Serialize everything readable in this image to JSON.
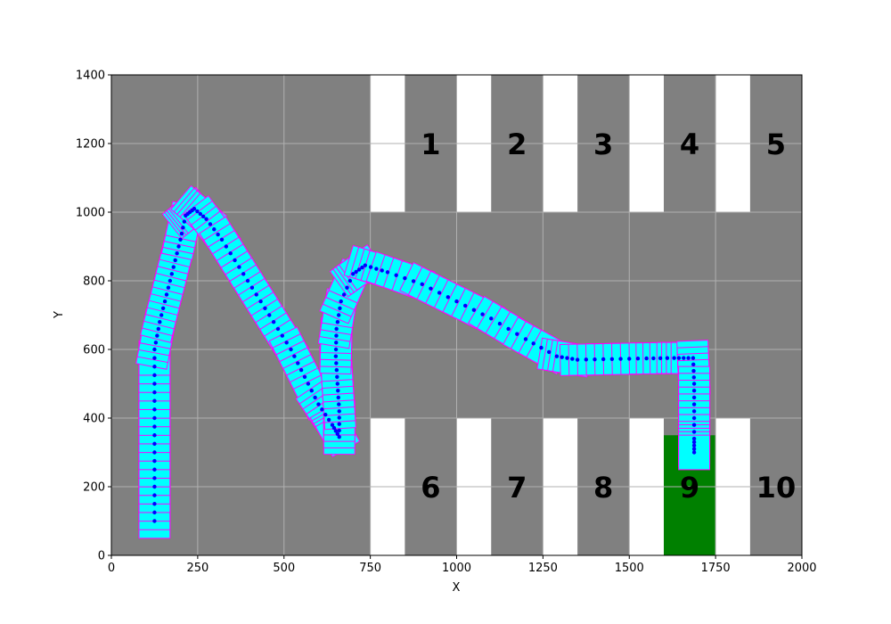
{
  "chart_data": {
    "type": "scatter",
    "title": "",
    "xlabel": "X",
    "ylabel": "Y",
    "xlim": [
      0,
      2000
    ],
    "ylim": [
      0,
      1400
    ],
    "xticks": [
      0,
      250,
      500,
      750,
      1000,
      1250,
      1500,
      1750,
      2000
    ],
    "yticks": [
      0,
      200,
      400,
      600,
      800,
      1000,
      1200,
      1400
    ],
    "grid": true,
    "colors": {
      "ground": "#808080",
      "line_marking": "#ffffff",
      "goal_slot": "#008000",
      "vehicle_fill": "#00ffff",
      "vehicle_edge": "#ff00ff",
      "path_points": "#0000ff",
      "grid": "#b0b0b0"
    },
    "white_lines": [
      [
        750,
        850,
        1000,
        1400
      ],
      [
        1000,
        1100,
        1000,
        1400
      ],
      [
        1250,
        1350,
        1000,
        1400
      ],
      [
        1500,
        1600,
        1000,
        1400
      ],
      [
        1750,
        1850,
        1000,
        1400
      ],
      [
        750,
        850,
        0,
        400
      ],
      [
        1000,
        1100,
        0,
        400
      ],
      [
        1250,
        1350,
        0,
        400
      ],
      [
        1500,
        1600,
        0,
        400
      ],
      [
        1750,
        1850,
        0,
        400
      ]
    ],
    "goal_slot": [
      1600,
      1750,
      0,
      350
    ],
    "slot_labels": [
      {
        "text": "1",
        "x": 925,
        "y": 1200
      },
      {
        "text": "2",
        "x": 1175,
        "y": 1200
      },
      {
        "text": "3",
        "x": 1425,
        "y": 1200
      },
      {
        "text": "4",
        "x": 1675,
        "y": 1200
      },
      {
        "text": "5",
        "x": 1925,
        "y": 1200
      },
      {
        "text": "6",
        "x": 925,
        "y": 200
      },
      {
        "text": "7",
        "x": 1175,
        "y": 200
      },
      {
        "text": "8",
        "x": 1425,
        "y": 200
      },
      {
        "text": "9",
        "x": 1675,
        "y": 200
      },
      {
        "text": "10",
        "x": 1925,
        "y": 200
      }
    ],
    "vehicle": {
      "length": 100,
      "width": 90
    },
    "path": [
      {
        "x": 125,
        "y": 100
      },
      {
        "x": 125,
        "y": 200
      },
      {
        "x": 125,
        "y": 300
      },
      {
        "x": 125,
        "y": 400
      },
      {
        "x": 125,
        "y": 500
      },
      {
        "x": 125,
        "y": 600
      },
      {
        "x": 140,
        "y": 680
      },
      {
        "x": 160,
        "y": 760
      },
      {
        "x": 180,
        "y": 840
      },
      {
        "x": 200,
        "y": 920
      },
      {
        "x": 215,
        "y": 990
      },
      {
        "x": 240,
        "y": 1010
      },
      {
        "x": 275,
        "y": 980
      },
      {
        "x": 320,
        "y": 920
      },
      {
        "x": 370,
        "y": 840
      },
      {
        "x": 420,
        "y": 760
      },
      {
        "x": 470,
        "y": 680
      },
      {
        "x": 520,
        "y": 600
      },
      {
        "x": 560,
        "y": 520
      },
      {
        "x": 600,
        "y": 440
      },
      {
        "x": 640,
        "y": 380
      },
      {
        "x": 660,
        "y": 345
      },
      {
        "x": 660,
        "y": 420
      },
      {
        "x": 655,
        "y": 500
      },
      {
        "x": 650,
        "y": 580
      },
      {
        "x": 652,
        "y": 660
      },
      {
        "x": 665,
        "y": 740
      },
      {
        "x": 700,
        "y": 820
      },
      {
        "x": 735,
        "y": 845
      },
      {
        "x": 800,
        "y": 825
      },
      {
        "x": 900,
        "y": 790
      },
      {
        "x": 1000,
        "y": 740
      },
      {
        "x": 1100,
        "y": 690
      },
      {
        "x": 1200,
        "y": 630
      },
      {
        "x": 1290,
        "y": 580
      },
      {
        "x": 1350,
        "y": 570
      },
      {
        "x": 1450,
        "y": 572
      },
      {
        "x": 1550,
        "y": 574
      },
      {
        "x": 1630,
        "y": 575
      },
      {
        "x": 1685,
        "y": 575
      },
      {
        "x": 1688,
        "y": 500
      },
      {
        "x": 1688,
        "y": 420
      },
      {
        "x": 1688,
        "y": 340
      },
      {
        "x": 1688,
        "y": 300
      }
    ]
  }
}
